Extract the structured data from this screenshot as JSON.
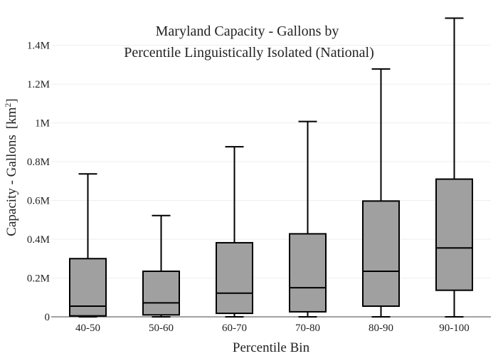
{
  "chart_data": {
    "type": "box",
    "title_lines": [
      "Maryland Capacity - Gallons by",
      "Percentile Linguistically Isolated (National)"
    ],
    "xlabel": "Percentile Bin",
    "ylabel": "Capacity - Gallons",
    "ylabel_unit": "[km",
    "ylabel_unit_sup": "2",
    "ylabel_unit_close": "]",
    "ylim": [
      0,
      1560000
    ],
    "yticks": [
      {
        "value": 0,
        "label": "0"
      },
      {
        "value": 200000,
        "label": "0.2M"
      },
      {
        "value": 400000,
        "label": "0.4M"
      },
      {
        "value": 600000,
        "label": "0.6M"
      },
      {
        "value": 800000,
        "label": "0.8M"
      },
      {
        "value": 1000000,
        "label": "1M"
      },
      {
        "value": 1200000,
        "label": "1.2M"
      },
      {
        "value": 1400000,
        "label": "1.4M"
      }
    ],
    "grid": true,
    "box_color": "#a0a0a0",
    "line_color": "#000000",
    "boxes": [
      {
        "category": "40-50",
        "min": 0,
        "q1": 5000,
        "median": 55000,
        "q3": 300000,
        "max": 737000
      },
      {
        "category": "50-60",
        "min": 0,
        "q1": 10000,
        "median": 72000,
        "q3": 235000,
        "max": 522000
      },
      {
        "category": "60-70",
        "min": 0,
        "q1": 18000,
        "median": 122000,
        "q3": 382000,
        "max": 877000
      },
      {
        "category": "70-80",
        "min": 0,
        "q1": 26000,
        "median": 150000,
        "q3": 428000,
        "max": 1007000
      },
      {
        "category": "80-90",
        "min": 0,
        "q1": 55000,
        "median": 235000,
        "q3": 597000,
        "max": 1278000
      },
      {
        "category": "90-100",
        "min": 0,
        "q1": 137000,
        "median": 355000,
        "q3": 710000,
        "max": 1540000
      }
    ]
  }
}
